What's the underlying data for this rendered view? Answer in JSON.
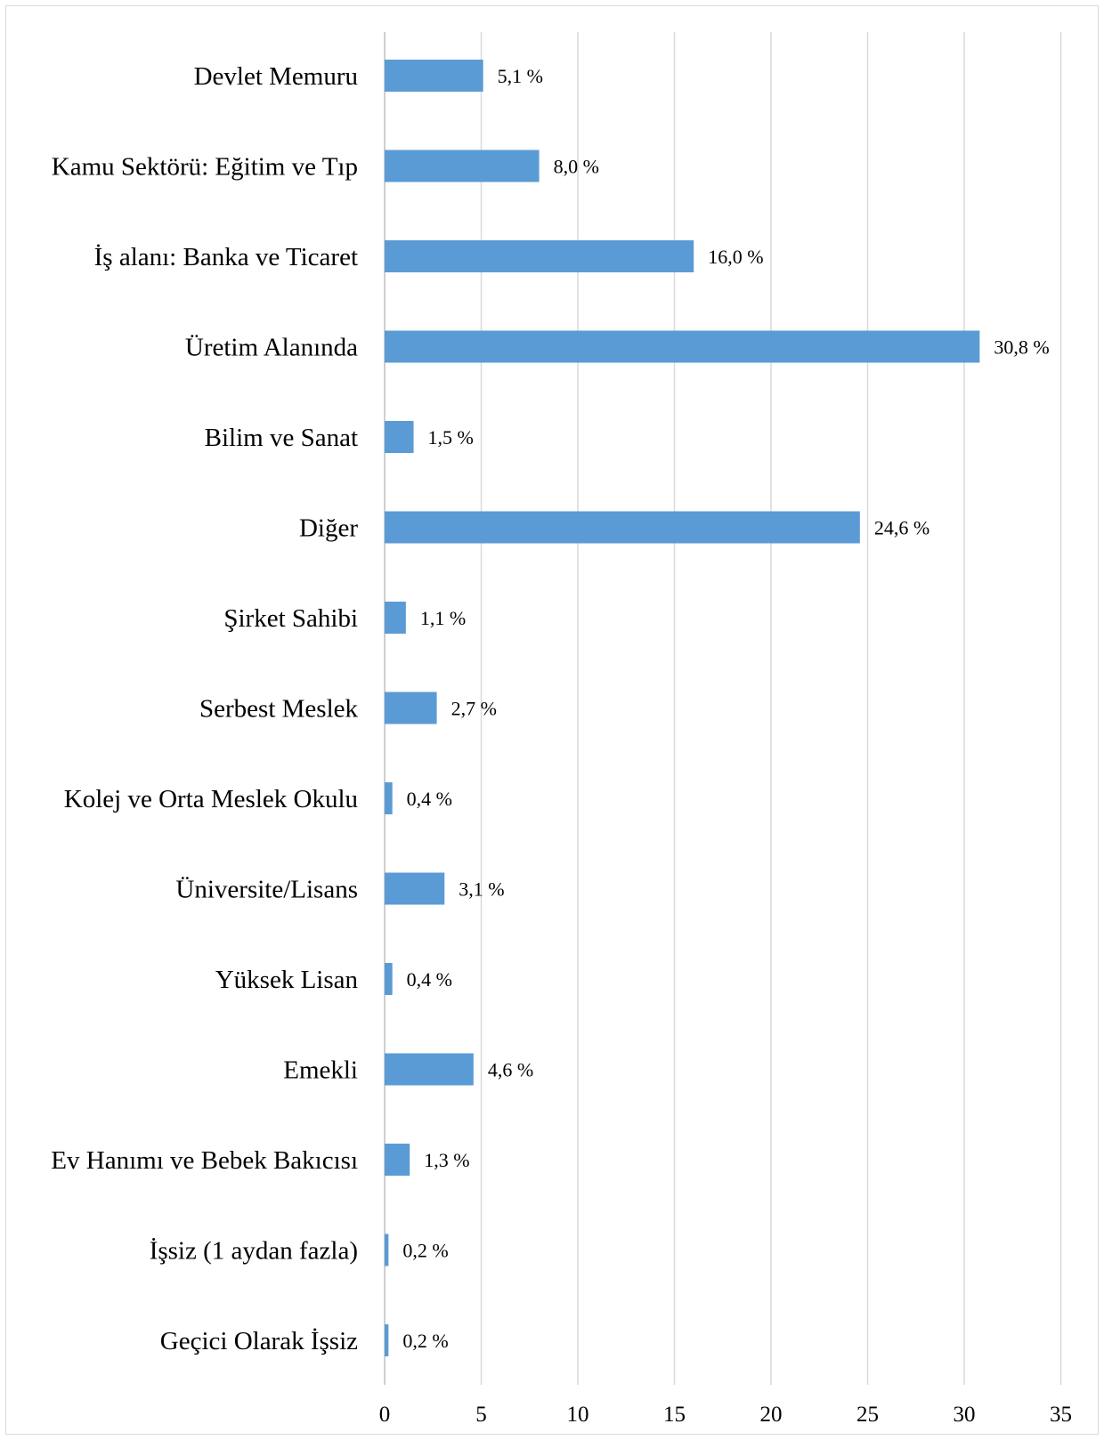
{
  "chart_data": {
    "type": "bar",
    "orientation": "horizontal",
    "title": "",
    "xlabel": "",
    "ylabel": "",
    "categories": [
      "Devlet Memuru",
      "Kamu Sektörü: Eğitim ve Tıp",
      "İş alanı: Banka ve Ticaret",
      "Üretim Alanında",
      "Bilim ve Sanat",
      "Diğer",
      "Şirket Sahibi",
      "Serbest Meslek",
      "Kolej ve Orta Meslek Okulu",
      "Üniversite/Lisans",
      "Yüksek Lisan",
      "Emekli",
      "Ev Hanımı ve Bebek Bakıcısı",
      "İşsiz (1 aydan fazla)",
      "Geçici Olarak İşsiz"
    ],
    "values": [
      5.1,
      8.0,
      16.0,
      30.8,
      1.5,
      24.6,
      1.1,
      2.7,
      0.4,
      3.1,
      0.4,
      4.6,
      1.3,
      0.2,
      0.2
    ],
    "data_labels": [
      "5,1 %",
      "8,0 %",
      "16,0 %",
      "30,8 %",
      "1,5 %",
      "24,6 %",
      "1,1 %",
      "2,7 %",
      "0,4 %",
      "3,1 %",
      "0,4 %",
      "4,6 %",
      "1,3 %",
      "0,2 %",
      "0,2 %"
    ],
    "xlim": [
      0,
      35
    ],
    "xticks": [
      0,
      5,
      10,
      15,
      20,
      25,
      30,
      35
    ],
    "xtick_labels": [
      "0",
      "5",
      "10",
      "15",
      "20",
      "25",
      "30",
      "35"
    ],
    "grid": true,
    "legend": "none",
    "colors": {
      "bar": "#5b9bd5",
      "grid": "#d9d9d9",
      "border": "#d9d9d9",
      "text": "#000000"
    }
  }
}
